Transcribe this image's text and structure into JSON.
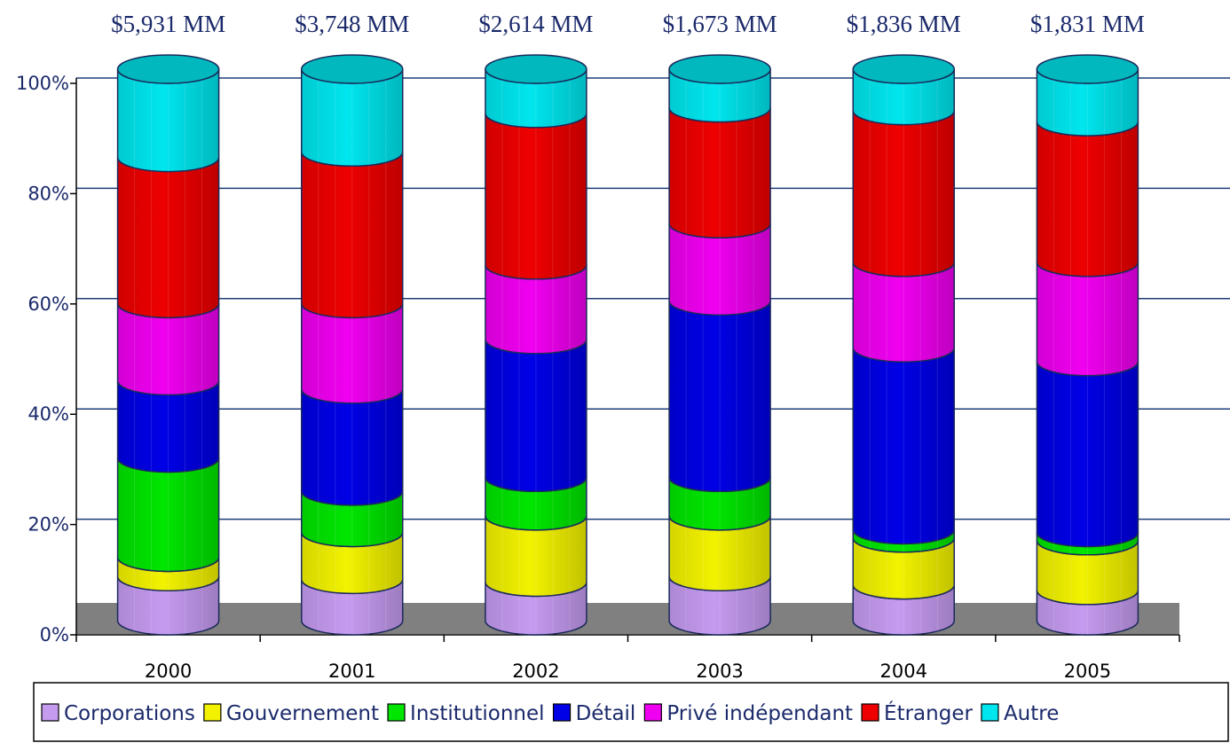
{
  "chart_data": {
    "type": "bar",
    "stacked": true,
    "normalized_percent": true,
    "categories": [
      "2000",
      "2001",
      "2002",
      "2003",
      "2004",
      "2005"
    ],
    "totals": [
      "$5,931 MM",
      "$3,748 MM",
      "$2,614 MM",
      "$1,673 MM",
      "$1,836 MM",
      "$1,831 MM"
    ],
    "yticks": [
      "0%",
      "20%",
      "40%",
      "60%",
      "80%",
      "100%"
    ],
    "ylim": [
      0,
      100
    ],
    "grid": true,
    "legend_position": "bottom",
    "series": [
      {
        "name": "Corporations",
        "color": "#c59bf0",
        "values": [
          8,
          7.5,
          7,
          8,
          6.5,
          5.5
        ]
      },
      {
        "name": "Gouvernement",
        "color": "#f2f200",
        "values": [
          3.5,
          8.5,
          12,
          11,
          8.5,
          9
        ]
      },
      {
        "name": "Institutionnel",
        "color": "#00e600",
        "values": [
          18,
          7.5,
          7,
          7,
          1.5,
          1.5
        ]
      },
      {
        "name": "Détail",
        "color": "#0000e6",
        "values": [
          14,
          18.5,
          25,
          32,
          33,
          31
        ]
      },
      {
        "name": "Privé indépendant",
        "color": "#f000f0",
        "values": [
          14,
          15.5,
          13.5,
          14,
          15.5,
          18
        ]
      },
      {
        "name": "Étranger",
        "color": "#ee0000",
        "values": [
          26.5,
          27.5,
          27.5,
          21,
          27.5,
          25.5
        ]
      },
      {
        "name": "Autre",
        "color": "#00e6ee",
        "values": [
          16,
          15,
          8,
          7,
          7.5,
          9.5
        ]
      }
    ]
  }
}
